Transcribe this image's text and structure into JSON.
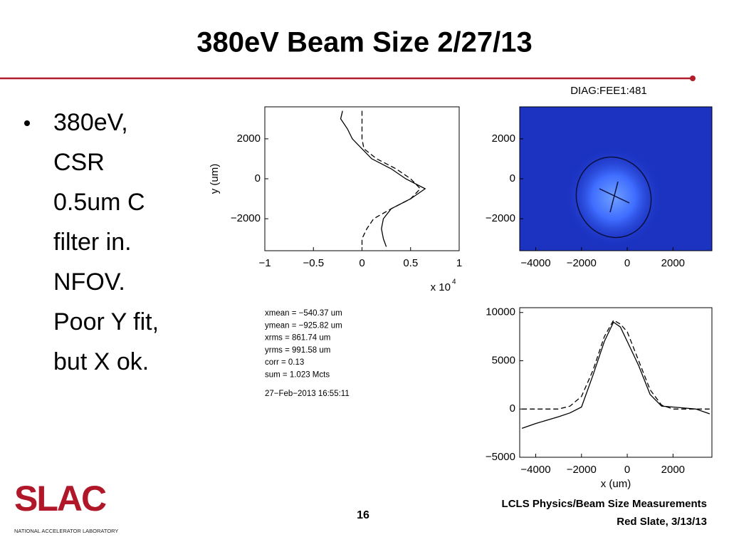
{
  "title": "380eV Beam Size 2/27/13",
  "bullet_lines": [
    "380eV,",
    "CSR",
    "0.5um C",
    "filter in.",
    "NFOV.",
    "Poor Y fit,",
    "but X ok."
  ],
  "stats": [
    "xmean = −540.37 um",
    "ymean = −925.82 um",
    "xrms = 861.74 um",
    "yrms = 991.58 um",
    "corr = 0.13",
    "sum = 1.023 Mcts"
  ],
  "timestamp": "27−Feb−2013 16:55:11",
  "footer": {
    "page": "16",
    "line1": "LCLS Physics/Beam Size Measurements",
    "line2": "Red Slate, 3/13/13"
  },
  "logo": {
    "name": "SLAC",
    "subtitle": "NATIONAL ACCELERATOR LABORATORY"
  },
  "chart_data": [
    {
      "type": "line",
      "orientation": "vertical",
      "y_label": "y (um)",
      "x_multiplier": {
        "base": "x 10",
        "exponent": "4"
      },
      "xlim": [
        -1,
        1
      ],
      "ylim": [
        -3600,
        3600
      ],
      "xticks": [
        {
          "value": -1,
          "label": "−1"
        },
        {
          "value": -0.5,
          "label": "−0.5"
        },
        0,
        0.5,
        1
      ],
      "yticks": [
        2000,
        0,
        {
          "value": -2000,
          "label": "−2000"
        }
      ],
      "y": [
        3400,
        3000,
        2500,
        2000,
        1500,
        1000,
        500,
        0,
        -500,
        -1000,
        -1500,
        -2000,
        -2500,
        -3000,
        -3400
      ],
      "series": [
        {
          "color": "#000000",
          "style": "solid",
          "values": [
            -0.2,
            -0.22,
            -0.15,
            -0.1,
            0.0,
            0.1,
            0.3,
            0.45,
            0.65,
            0.5,
            0.3,
            0.22,
            0.2,
            0.22,
            0.25
          ]
        },
        {
          "color": "#000000",
          "style": "dashed",
          "values": [
            0.0,
            0.0,
            0.0,
            0.0,
            0.02,
            0.15,
            0.35,
            0.5,
            0.6,
            0.5,
            0.3,
            0.12,
            0.05,
            0.0,
            0.0
          ]
        }
      ]
    },
    {
      "type": "image",
      "title": "DIAG:FEE1:481",
      "color": "#1c33c2",
      "xlim": [
        -4700,
        3700
      ],
      "ylim": [
        -3600,
        3600
      ],
      "xticks": [
        {
          "value": -4000,
          "label": "−4000"
        },
        {
          "value": -2000,
          "label": "−2000"
        },
        0,
        2000
      ],
      "yticks": [
        2000,
        0,
        {
          "value": -2000,
          "label": "−2000"
        }
      ]
    },
    {
      "type": "line",
      "x_label": "x (um)",
      "xlim": [
        -4700,
        3700
      ],
      "ylim": [
        -5000,
        10500
      ],
      "xticks": [
        {
          "value": -4000,
          "label": "−4000"
        },
        {
          "value": -2000,
          "label": "−2000"
        },
        0,
        2000
      ],
      "yticks": [
        10000,
        5000,
        0,
        {
          "value": -5000,
          "label": "−5000"
        }
      ],
      "x": [
        -4600,
        -4000,
        -3000,
        -2500,
        -2000,
        -1500,
        -1000,
        -600,
        -300,
        0,
        500,
        1000,
        1500,
        2000,
        2500,
        3000,
        3600
      ],
      "series": [
        {
          "color": "#000000",
          "style": "solid",
          "values": [
            -2000,
            -1500,
            -800,
            -400,
            200,
            3500,
            7000,
            9000,
            8500,
            7000,
            4500,
            1500,
            300,
            200,
            100,
            0,
            -500
          ]
        },
        {
          "color": "#000000",
          "style": "dashed",
          "values": [
            0,
            0,
            0,
            300,
            1300,
            4000,
            7500,
            9200,
            8800,
            8000,
            5000,
            2000,
            400,
            0,
            0,
            0,
            0
          ]
        }
      ]
    }
  ]
}
